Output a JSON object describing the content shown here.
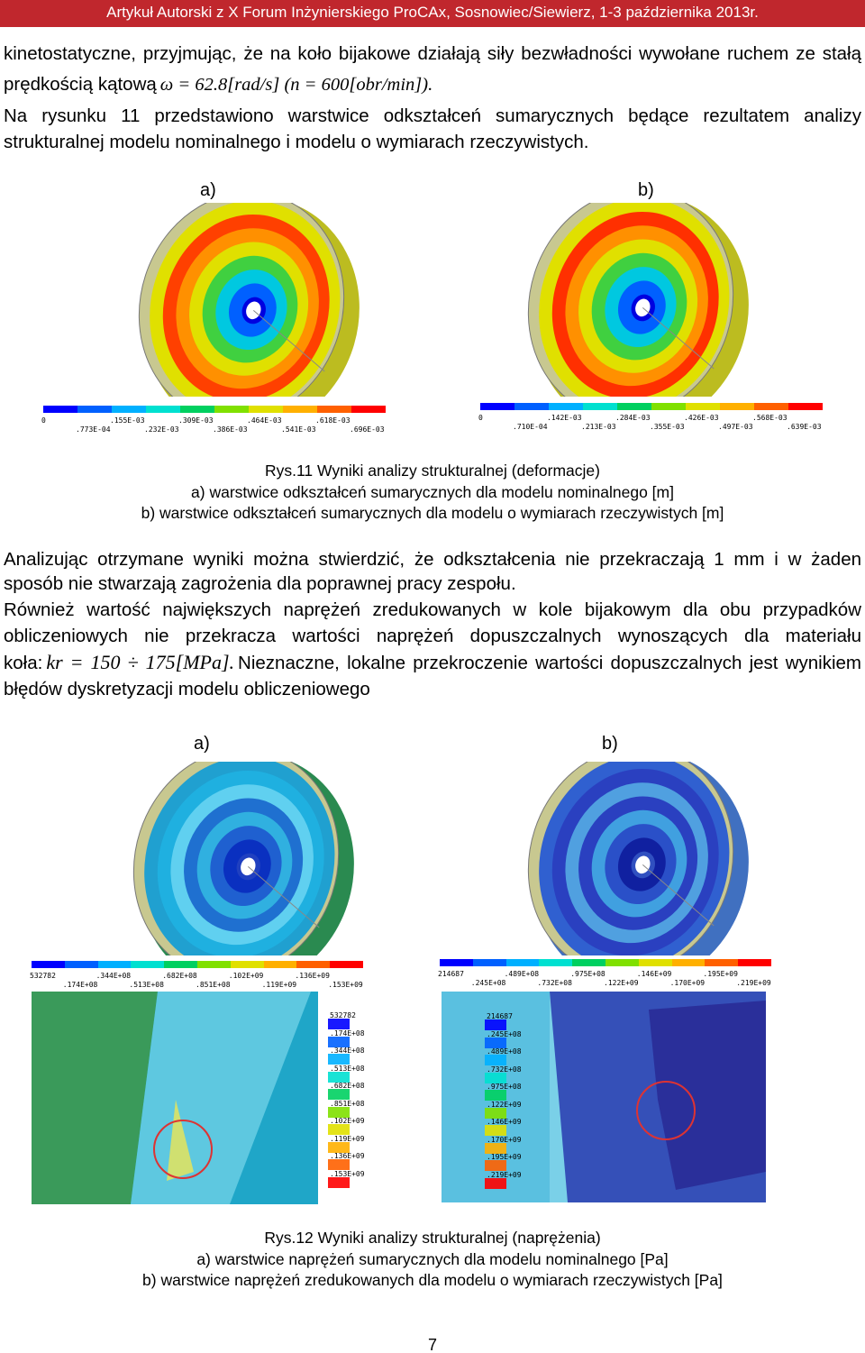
{
  "header": {
    "title": "Artykuł Autorski z X Forum Inżynierskiego ProCAx, Sosnowiec/Siewierz, 1-3 października 2013r."
  },
  "paragraphs": [
    {
      "text": "kinetostatyczne, przyjmując, że na koło bijakowe działają siły bezwładności wywołane ruchem ze stałą prędkością kątową",
      "formula": "ω = 62.8[rad/s] (n = 600[obr/min])."
    },
    {
      "text": "Na rysunku 11 przedstawiono warstwice odkształceń sumarycznych będące rezultatem analizy strukturalnej modelu nominalnego i modelu o wymiarach rzeczywistych."
    },
    {
      "text": "Analizując otrzymane wyniki można stwierdzić, że odkształcenia nie przekraczają 1 mm i w żaden sposób nie stwarzają zagrożenia dla poprawnej pracy zespołu."
    },
    {
      "text": "Również wartość największych naprężeń zredukowanych w kole bijakowym dla obu przypadków obliczeniowych nie przekracza wartości naprężeń dopuszczalnych wynoszących dla materiału koła:",
      "formula": "kr = 150 ÷ 175[MPa].",
      "text_after": "Nieznaczne, lokalne przekroczenie wartości dopuszczalnych jest wynikiem błędów dyskretyzacji modelu obliczeniowego"
    }
  ],
  "figures": [
    {
      "panel_a": "a)",
      "panel_b": "b)",
      "legend_a": [
        "0",
        ".773E-04",
        ".155E-03",
        ".232E-03",
        ".309E-03",
        ".386E-03",
        ".464E-03",
        ".541E-03",
        ".618E-03",
        ".696E-03"
      ],
      "legend_b": [
        "0",
        ".710E-04",
        ".142E-03",
        ".213E-03",
        ".284E-03",
        ".355E-03",
        ".426E-03",
        ".497E-03",
        ".568E-03",
        ".639E-03"
      ],
      "caption": [
        "Rys.11 Wyniki analizy strukturalnej (deformacje)",
        "a) warstwice odkształceń sumarycznych dla modelu nominalnego [m]",
        "b) warstwice odkształceń sumarycznych dla modelu o wymiarach rzeczywistych [m]"
      ]
    },
    {
      "panel_a": "a)",
      "panel_b": "b)",
      "legend_a": [
        "532782",
        ".174E+08",
        ".344E+08",
        ".513E+08",
        ".682E+08",
        ".851E+08",
        ".102E+09",
        ".119E+09",
        ".136E+09",
        ".153E+09"
      ],
      "legend_b": [
        "214687",
        ".245E+08",
        ".489E+08",
        ".732E+08",
        ".975E+08",
        ".122E+09",
        ".146E+09",
        ".170E+09",
        ".195E+09",
        ".219E+09"
      ],
      "caption": [
        "Rys.12 Wyniki analizy strukturalnej (naprężenia)",
        "a) warstwice naprężeń sumarycznych dla modelu nominalnego [Pa]",
        "b) warstwice naprężeń zredukowanych dla modelu o wymiarach rzeczywistych [Pa]"
      ]
    }
  ],
  "footer": {
    "page_number": "7"
  }
}
